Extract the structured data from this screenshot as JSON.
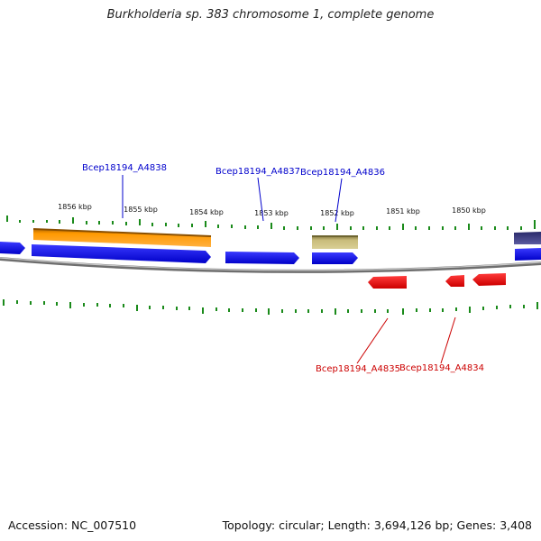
{
  "title": "Burkholderia sp. 383 chromosome 1, complete genome",
  "footer": {
    "accession": "Accession: NC_007510",
    "summary": "Topology: circular; Length: 3,694,126 bp; Genes: 3,408"
  },
  "scale_labels": [
    "1856 kbp",
    "1855 kbp",
    "1854 kbp",
    "1853 kbp",
    "1852 kbp",
    "1851 kbp",
    "1850 kbp"
  ],
  "gene_labels": {
    "top": [
      "Bcep18194_A4838",
      "Bcep18194_A4837",
      "Bcep18194_A4836"
    ],
    "bottom": [
      "Bcep18194_A4835",
      "Bcep18194_A4834"
    ]
  },
  "colors": {
    "forward_gene": "#0000ee",
    "reverse_gene": "#ee0000",
    "label_forward": "#0000cc",
    "label_reverse": "#cc0000",
    "orange_feature": "#ff9900",
    "olive_feature": "#c8bb7a",
    "purple_feature": "#4a4a8a",
    "ticks": "#1a8a1a",
    "backbone": "#8a8a8a"
  }
}
